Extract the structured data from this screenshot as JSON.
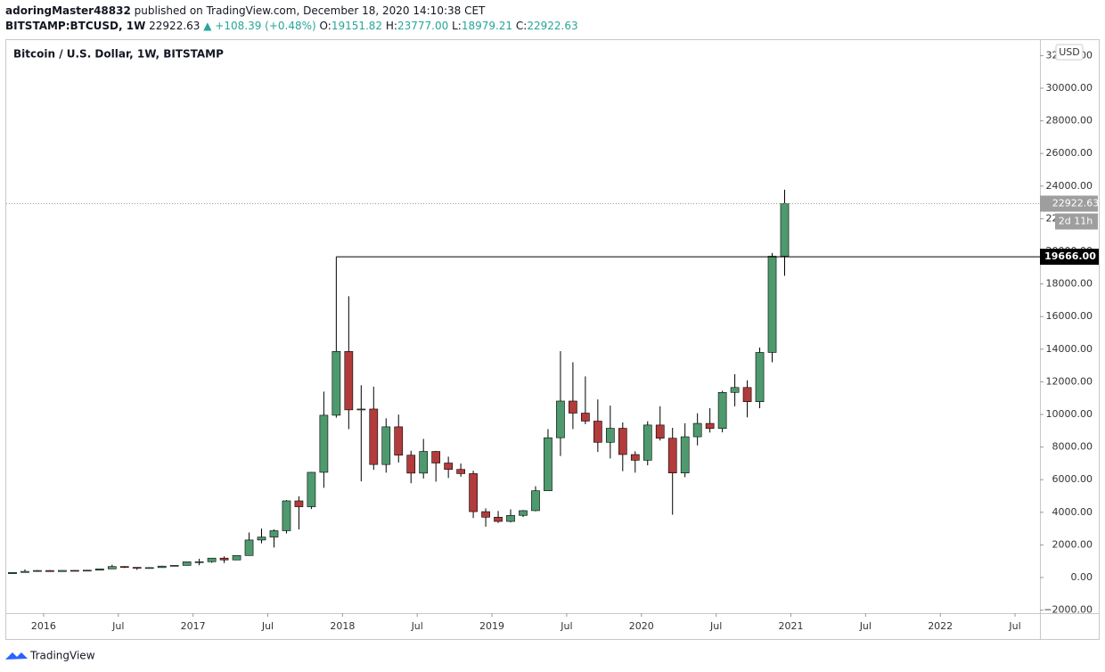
{
  "header": {
    "publisher": "adoringMaster48832",
    "published": "published on TradingView.com, December 18, 2020 14:10:38 CET",
    "symbol": "BITSTAMP:BTCUSD, 1W",
    "last": "22922.63",
    "change": "▲ +108.39 (+0.48%)",
    "o_key": "O:",
    "o": "19151.82",
    "h_key": "H:",
    "h": "23777.00",
    "l_key": "L:",
    "l": "18979.21",
    "c_key": "C:",
    "c": "22922.63"
  },
  "chart_data": {
    "type": "candlestick",
    "title": "Bitcoin / U.S. Dollar, 1W, BITSTAMP",
    "currency": "USD",
    "x": [
      "2015-10",
      "2015-11",
      "2015-12",
      "2016-01",
      "2016-02",
      "2016-03",
      "2016-04",
      "2016-05",
      "2016-06",
      "2016-07",
      "2016-08",
      "2016-09",
      "2016-10",
      "2016-11",
      "2016-12",
      "2017-01",
      "2017-02",
      "2017-03",
      "2017-04",
      "2017-05",
      "2017-06",
      "2017-07",
      "2017-08",
      "2017-09",
      "2017-10",
      "2017-11",
      "2017-12",
      "2018-01",
      "2018-02",
      "2018-03",
      "2018-04",
      "2018-05",
      "2018-06",
      "2018-07",
      "2018-08",
      "2018-09",
      "2018-10",
      "2018-11",
      "2018-12",
      "2019-01",
      "2019-02",
      "2019-03",
      "2019-04",
      "2019-05",
      "2019-06",
      "2019-07",
      "2019-08",
      "2019-09",
      "2019-10",
      "2019-11",
      "2019-12",
      "2020-01",
      "2020-02",
      "2020-03",
      "2020-04",
      "2020-05",
      "2020-06",
      "2020-07",
      "2020-08",
      "2020-09",
      "2020-10",
      "2020-11",
      "2020-12"
    ],
    "open": [
      237,
      313,
      377,
      430,
      368,
      437,
      416,
      448,
      531,
      673,
      624,
      573,
      608,
      700,
      745,
      964,
      970,
      1190,
      1080,
      1350,
      2300,
      2480,
      2870,
      4700,
      4340,
      6450,
      9950,
      13860,
      10280,
      10330,
      6930,
      9240,
      7500,
      6400,
      7730,
      7020,
      6630,
      6370,
      4040,
      3700,
      3440,
      3810,
      4100,
      5320,
      8570,
      10820,
      10080,
      9590,
      8290,
      9150,
      7540,
      7190,
      9350,
      8540,
      6410,
      8630,
      9450,
      9140,
      11350,
      11650,
      10780,
      13800,
      19700
    ],
    "high": [
      315,
      500,
      465,
      460,
      440,
      440,
      465,
      550,
      780,
      700,
      630,
      630,
      720,
      760,
      980,
      1150,
      1200,
      1300,
      1350,
      2760,
      3000,
      2950,
      4750,
      4980,
      6470,
      11400,
      19666,
      17250,
      11790,
      11700,
      9760,
      9990,
      7770,
      8500,
      7760,
      7410,
      6990,
      6550,
      4240,
      4080,
      4180,
      4140,
      5600,
      9100,
      13880,
      13200,
      12330,
      10920,
      10540,
      9510,
      7740,
      9580,
      10500,
      9180,
      9460,
      10070,
      10380,
      11450,
      12470,
      12090,
      14100,
      19900,
      23777
    ],
    "low": [
      235,
      300,
      350,
      355,
      365,
      400,
      415,
      440,
      530,
      580,
      470,
      570,
      605,
      680,
      740,
      750,
      910,
      890,
      1060,
      1350,
      2100,
      1840,
      2700,
      2950,
      4200,
      5500,
      9800,
      9100,
      5900,
      6600,
      6430,
      7050,
      5780,
      6070,
      5880,
      6100,
      6180,
      3650,
      3120,
      3350,
      3380,
      3710,
      4060,
      5320,
      7450,
      9100,
      9400,
      7700,
      7300,
      6520,
      6430,
      6880,
      8400,
      3850,
      6150,
      8100,
      8890,
      8900,
      10500,
      9820,
      10380,
      13200,
      18500
    ],
    "close": [
      313,
      377,
      430,
      368,
      437,
      416,
      448,
      531,
      673,
      624,
      573,
      608,
      700,
      745,
      964,
      970,
      1190,
      1080,
      1350,
      2300,
      2480,
      2870,
      4700,
      4340,
      6450,
      9950,
      13860,
      10280,
      10330,
      6930,
      9240,
      7500,
      6400,
      7730,
      7020,
      6630,
      6370,
      4040,
      3700,
      3440,
      3810,
      4100,
      5320,
      8570,
      10820,
      10080,
      9590,
      8290,
      9150,
      7540,
      7190,
      9350,
      8540,
      6410,
      8630,
      9450,
      9140,
      11350,
      11650,
      10780,
      13800,
      19700,
      22922.63
    ],
    "up_color": "#4e9a6e",
    "down_color": "#b23b3b",
    "wick_color": "#000000",
    "xlim": [
      "2015-10",
      "2022-09"
    ],
    "xticks": [
      {
        "value": "2016-01",
        "label": "2016"
      },
      {
        "value": "2016-07",
        "label": "Jul"
      },
      {
        "value": "2017-01",
        "label": "2017"
      },
      {
        "value": "2017-07",
        "label": "Jul"
      },
      {
        "value": "2018-01",
        "label": "2018"
      },
      {
        "value": "2018-07",
        "label": "Jul"
      },
      {
        "value": "2019-01",
        "label": "2019"
      },
      {
        "value": "2019-07",
        "label": "Jul"
      },
      {
        "value": "2020-01",
        "label": "2020"
      },
      {
        "value": "2020-07",
        "label": "Jul"
      },
      {
        "value": "2021-01",
        "label": "2021"
      },
      {
        "value": "2021-07",
        "label": "Jul"
      },
      {
        "value": "2022-01",
        "label": "2022"
      },
      {
        "value": "2022-07",
        "label": "Jul"
      }
    ],
    "ylim": [
      -2186,
      32950
    ],
    "yticks": [
      {
        "value": -2000,
        "label": "−2000.00"
      },
      {
        "value": 0,
        "label": "0.00"
      },
      {
        "value": 2000,
        "label": "2000.00"
      },
      {
        "value": 4000,
        "label": "4000.00"
      },
      {
        "value": 6000,
        "label": "6000.00"
      },
      {
        "value": 8000,
        "label": "8000.00"
      },
      {
        "value": 10000,
        "label": "10000.00"
      },
      {
        "value": 12000,
        "label": "12000.00"
      },
      {
        "value": 14000,
        "label": "14000.00"
      },
      {
        "value": 16000,
        "label": "16000.00"
      },
      {
        "value": 18000,
        "label": "18000.00"
      },
      {
        "value": 20000,
        "label": "20000.00"
      },
      {
        "value": 22000,
        "label": "22000.00"
      },
      {
        "value": 24000,
        "label": "24000.00"
      },
      {
        "value": 26000,
        "label": "26000.00"
      },
      {
        "value": 28000,
        "label": "28000.00"
      },
      {
        "value": 30000,
        "label": "30000.00"
      },
      {
        "value": 32000,
        "label": "32000.00"
      }
    ],
    "last_price": {
      "value": 22922.63,
      "label": "22922.63"
    },
    "countdown": "2d 11h",
    "level": {
      "value": 19666,
      "label": "19666.00",
      "from": "2017-12"
    },
    "brand": "TradingView"
  }
}
